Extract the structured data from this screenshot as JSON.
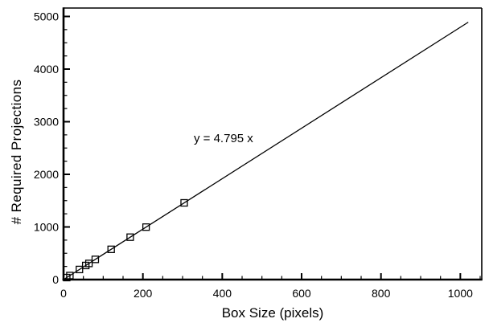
{
  "figure": {
    "background": "#ffffff",
    "frame_color": "#000000"
  },
  "chart_data": {
    "type": "scatter",
    "title": "",
    "xlabel": "Box Size (pixels)",
    "ylabel": "# Required Projections",
    "annotation": "y = 4.795 x",
    "fit": {
      "slope": 4.795,
      "intercept": 0,
      "x_start": 0,
      "x_end": 1020
    },
    "points": {
      "x": [
        8,
        16,
        40,
        56,
        64,
        80,
        120,
        168,
        208,
        304
      ],
      "y": [
        38,
        77,
        192,
        268,
        307,
        384,
        575,
        806,
        997,
        1458
      ]
    },
    "marker": "open-square",
    "marker_size": 8,
    "line_color": "#000000",
    "marker_color": "#000000",
    "xlim": [
      0,
      1054
    ],
    "ylim": [
      0,
      5160
    ],
    "x_major_ticks": [
      0,
      200,
      400,
      600,
      800,
      1000
    ],
    "x_tick_labels": [
      "0",
      "200",
      "400",
      "600",
      "800",
      "1000"
    ],
    "x_minor_step": 50,
    "y_major_ticks": [
      0,
      1000,
      2000,
      3000,
      4000,
      5000
    ],
    "y_tick_labels": [
      "0",
      "1000",
      "2000",
      "3000",
      "4000",
      "5000"
    ],
    "y_minor_step": 250,
    "y_minor_max": 5000,
    "grid": false,
    "legend": "none"
  }
}
